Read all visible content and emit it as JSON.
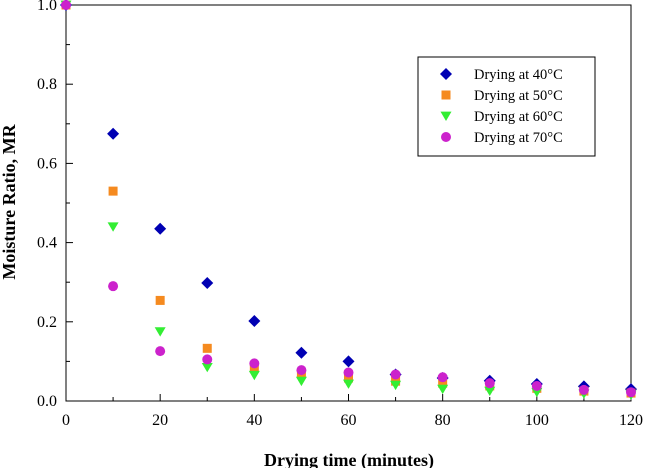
{
  "chart_data": {
    "type": "scatter",
    "xlabel": "Drying time (minutes)",
    "ylabel": "Moisture Ratio, MR",
    "xlim": [
      0,
      120
    ],
    "ylim": [
      0,
      1.0
    ],
    "x_ticks": [
      "0",
      "20",
      "40",
      "60",
      "80",
      "100",
      "120"
    ],
    "y_ticks": [
      "0.0",
      "0.2",
      "0.4",
      "0.6",
      "0.8",
      "1.0"
    ],
    "grid": false,
    "legend_position": "top-right",
    "x": [
      0,
      10,
      20,
      30,
      40,
      50,
      60,
      70,
      80,
      90,
      100,
      110,
      120
    ],
    "series": [
      {
        "name": "Drying at 40°C",
        "marker": "diamond",
        "color": "#0000b3",
        "values": [
          1.0,
          0.675,
          0.435,
          0.298,
          0.202,
          0.122,
          0.1,
          0.067,
          0.058,
          0.051,
          0.043,
          0.037,
          0.03
        ]
      },
      {
        "name": "Drying at 50°C",
        "marker": "square",
        "color": "#f58a1f",
        "values": [
          1.0,
          0.53,
          0.254,
          0.133,
          0.083,
          0.068,
          0.058,
          0.05,
          0.045,
          0.038,
          0.032,
          0.025,
          0.02
        ]
      },
      {
        "name": "Drying at 60°C",
        "marker": "triangle-down",
        "color": "#33ee33",
        "values": [
          1.0,
          0.44,
          0.175,
          0.085,
          0.065,
          0.05,
          0.043,
          0.04,
          0.03,
          0.025,
          0.022,
          0.018,
          0.015
        ]
      },
      {
        "name": "Drying at 70°C",
        "marker": "circle",
        "color": "#cc22cc",
        "values": [
          1.0,
          0.29,
          0.126,
          0.105,
          0.095,
          0.078,
          0.072,
          0.067,
          0.06,
          0.045,
          0.038,
          0.028,
          0.022
        ]
      }
    ]
  }
}
